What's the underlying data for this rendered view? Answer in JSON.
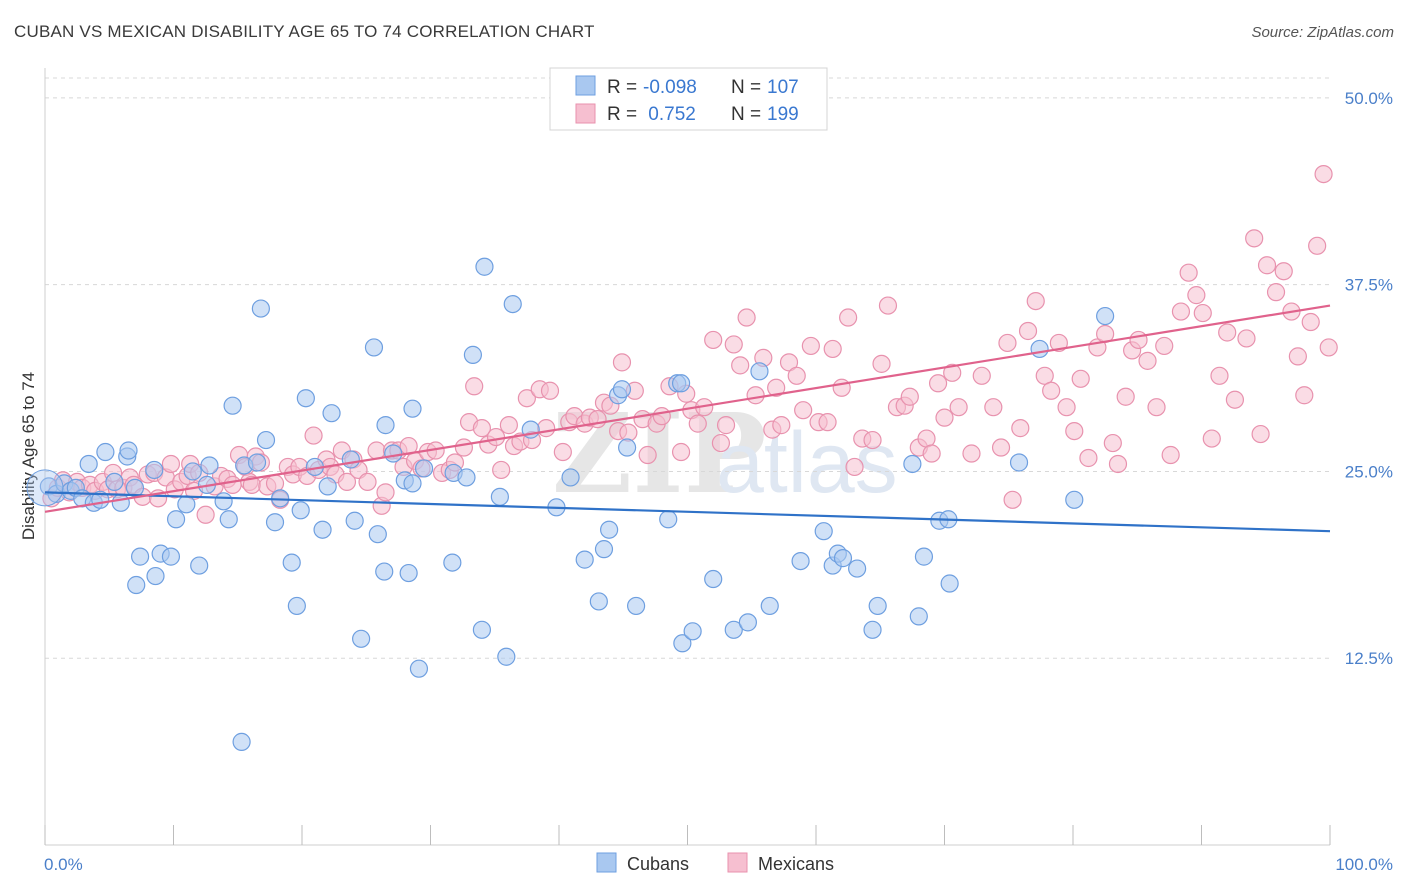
{
  "header": {
    "title": "CUBAN VS MEXICAN DISABILITY AGE 65 TO 74 CORRELATION CHART",
    "source": "Source: ZipAtlas.com"
  },
  "watermark": {
    "zip": "ZIP",
    "atlas": "atlas"
  },
  "legend": {
    "rows": [
      {
        "r_label": "R = ",
        "r_value": "-0.098",
        "n_label": "N = ",
        "n_value": "107"
      },
      {
        "r_label": "R = ",
        "r_value": " 0.752",
        "n_label": "N = ",
        "n_value": "199"
      }
    ]
  },
  "colors": {
    "cubans_fill": "#a9c8f0",
    "cubans_stroke": "#6e9fe0",
    "cubans_line": "#2f72c8",
    "mexicans_fill": "#f6bfd0",
    "mexicans_stroke": "#e892ae",
    "mexicans_line": "#e0628c",
    "tick_label": "#4a7fc9",
    "grid": "#d8d8d8"
  },
  "chart_data": {
    "type": "scatter",
    "title": "CUBAN VS MEXICAN DISABILITY AGE 65 TO 74 CORRELATION CHART",
    "ylabel": "Disability Age 65 to 74",
    "xlabel": "",
    "xlim": [
      0,
      100
    ],
    "ylim": [
      0,
      52
    ],
    "x_tick_labels": [
      "0.0%",
      "100.0%"
    ],
    "y_ticks": [
      12.5,
      25.0,
      37.5,
      50.0
    ],
    "y_tick_labels": [
      "12.5%",
      "25.0%",
      "37.5%",
      "50.0%"
    ],
    "grid": true,
    "legend_position": "bottom",
    "series": [
      {
        "name": "Cubans",
        "r": -0.098,
        "n": 107,
        "trend": {
          "x": [
            0,
            100
          ],
          "y": [
            23.6,
            21.0
          ]
        },
        "points": [
          [
            0.3,
            24.0
          ],
          [
            0.9,
            23.5
          ],
          [
            1.5,
            24.2
          ],
          [
            2.0,
            23.7
          ],
          [
            2.4,
            23.9
          ],
          [
            2.9,
            23.2
          ],
          [
            3.4,
            25.5
          ],
          [
            3.8,
            22.9
          ],
          [
            4.3,
            23.1
          ],
          [
            4.7,
            26.3
          ],
          [
            5.4,
            24.3
          ],
          [
            5.9,
            22.9
          ],
          [
            6.4,
            26.0
          ],
          [
            6.5,
            26.4
          ],
          [
            7.0,
            23.9
          ],
          [
            7.1,
            17.4
          ],
          [
            7.4,
            19.3
          ],
          [
            8.5,
            25.1
          ],
          [
            8.6,
            18.0
          ],
          [
            9.0,
            19.5
          ],
          [
            9.8,
            19.3
          ],
          [
            10.2,
            21.8
          ],
          [
            11.0,
            22.8
          ],
          [
            11.5,
            25.0
          ],
          [
            12.0,
            18.7
          ],
          [
            12.6,
            24.1
          ],
          [
            12.8,
            25.4
          ],
          [
            13.9,
            23.0
          ],
          [
            14.3,
            21.8
          ],
          [
            14.6,
            29.4
          ],
          [
            15.3,
            6.9
          ],
          [
            15.5,
            25.4
          ],
          [
            16.5,
            25.6
          ],
          [
            16.8,
            35.9
          ],
          [
            17.2,
            27.1
          ],
          [
            17.9,
            21.6
          ],
          [
            18.3,
            23.2
          ],
          [
            19.2,
            18.9
          ],
          [
            19.6,
            16.0
          ],
          [
            19.9,
            22.4
          ],
          [
            20.3,
            29.9
          ],
          [
            21.0,
            25.3
          ],
          [
            21.6,
            21.1
          ],
          [
            22.0,
            24.0
          ],
          [
            22.3,
            28.9
          ],
          [
            23.8,
            25.8
          ],
          [
            24.1,
            21.7
          ],
          [
            24.6,
            13.8
          ],
          [
            25.6,
            33.3
          ],
          [
            25.9,
            20.8
          ],
          [
            26.4,
            18.3
          ],
          [
            26.5,
            28.1
          ],
          [
            27.1,
            26.2
          ],
          [
            28.0,
            24.4
          ],
          [
            28.3,
            18.2
          ],
          [
            28.6,
            24.2
          ],
          [
            28.6,
            29.2
          ],
          [
            29.1,
            11.8
          ],
          [
            29.5,
            25.2
          ],
          [
            31.7,
            18.9
          ],
          [
            31.8,
            24.9
          ],
          [
            32.8,
            24.6
          ],
          [
            33.3,
            32.8
          ],
          [
            34.0,
            14.4
          ],
          [
            34.2,
            38.7
          ],
          [
            35.4,
            23.3
          ],
          [
            35.9,
            12.6
          ],
          [
            36.4,
            36.2
          ],
          [
            37.8,
            27.8
          ],
          [
            39.8,
            22.6
          ],
          [
            40.9,
            24.6
          ],
          [
            42.0,
            19.1
          ],
          [
            43.1,
            16.3
          ],
          [
            43.5,
            19.8
          ],
          [
            43.9,
            21.1
          ],
          [
            44.6,
            30.1
          ],
          [
            44.9,
            30.5
          ],
          [
            45.3,
            26.6
          ],
          [
            46.0,
            16.0
          ],
          [
            48.5,
            21.8
          ],
          [
            49.2,
            30.9
          ],
          [
            49.5,
            30.9
          ],
          [
            49.6,
            13.5
          ],
          [
            50.4,
            14.3
          ],
          [
            52.0,
            17.8
          ],
          [
            53.6,
            14.4
          ],
          [
            54.7,
            14.9
          ],
          [
            55.6,
            31.7
          ],
          [
            56.4,
            16.0
          ],
          [
            58.8,
            19.0
          ],
          [
            60.6,
            21.0
          ],
          [
            61.3,
            18.7
          ],
          [
            61.7,
            19.5
          ],
          [
            62.1,
            19.2
          ],
          [
            63.2,
            18.5
          ],
          [
            64.4,
            14.4
          ],
          [
            64.8,
            16.0
          ],
          [
            67.5,
            25.5
          ],
          [
            68.0,
            15.3
          ],
          [
            68.4,
            19.3
          ],
          [
            69.6,
            21.7
          ],
          [
            70.3,
            21.8
          ],
          [
            70.4,
            17.5
          ],
          [
            75.8,
            25.6
          ],
          [
            77.4,
            33.2
          ],
          [
            80.1,
            23.1
          ],
          [
            82.5,
            35.4
          ]
        ]
      },
      {
        "name": "Mexicans",
        "r": 0.752,
        "n": 199,
        "trend": {
          "x": [
            0,
            100
          ],
          "y": [
            22.3,
            36.1
          ]
        },
        "points": [
          [
            0.5,
            23.2
          ],
          [
            1.0,
            23.9
          ],
          [
            1.4,
            24.4
          ],
          [
            1.9,
            23.6
          ],
          [
            2.5,
            24.3
          ],
          [
            2.9,
            23.9
          ],
          [
            3.5,
            24.1
          ],
          [
            3.9,
            23.7
          ],
          [
            4.5,
            24.3
          ],
          [
            4.9,
            23.8
          ],
          [
            5.3,
            24.9
          ],
          [
            5.6,
            23.8
          ],
          [
            6.1,
            23.9
          ],
          [
            6.6,
            24.6
          ],
          [
            6.9,
            24.1
          ],
          [
            7.6,
            23.3
          ],
          [
            8.0,
            24.8
          ],
          [
            8.5,
            24.9
          ],
          [
            8.8,
            23.2
          ],
          [
            9.4,
            24.6
          ],
          [
            9.8,
            25.5
          ],
          [
            10.1,
            23.8
          ],
          [
            10.6,
            24.3
          ],
          [
            11.1,
            24.7
          ],
          [
            11.3,
            25.5
          ],
          [
            11.6,
            23.7
          ],
          [
            12.0,
            24.9
          ],
          [
            12.5,
            22.1
          ],
          [
            13.2,
            24.0
          ],
          [
            13.7,
            24.7
          ],
          [
            14.2,
            24.5
          ],
          [
            14.6,
            24.1
          ],
          [
            15.1,
            26.1
          ],
          [
            15.6,
            25.3
          ],
          [
            15.9,
            24.3
          ],
          [
            16.1,
            24.1
          ],
          [
            16.4,
            26.0
          ],
          [
            16.8,
            25.6
          ],
          [
            17.3,
            24.0
          ],
          [
            17.9,
            24.2
          ],
          [
            18.3,
            23.1
          ],
          [
            18.9,
            25.3
          ],
          [
            19.3,
            24.8
          ],
          [
            19.8,
            25.3
          ],
          [
            20.4,
            24.7
          ],
          [
            20.9,
            27.4
          ],
          [
            21.3,
            25.1
          ],
          [
            21.9,
            25.8
          ],
          [
            22.2,
            25.3
          ],
          [
            22.6,
            24.8
          ],
          [
            23.1,
            26.4
          ],
          [
            23.5,
            24.3
          ],
          [
            24.0,
            25.8
          ],
          [
            24.4,
            25.1
          ],
          [
            25.1,
            24.3
          ],
          [
            25.8,
            26.4
          ],
          [
            26.2,
            22.7
          ],
          [
            26.5,
            23.6
          ],
          [
            27.0,
            26.4
          ],
          [
            27.5,
            26.4
          ],
          [
            27.9,
            25.3
          ],
          [
            28.3,
            26.7
          ],
          [
            28.8,
            25.7
          ],
          [
            29.3,
            25.2
          ],
          [
            29.8,
            26.3
          ],
          [
            30.4,
            26.4
          ],
          [
            30.9,
            24.9
          ],
          [
            31.5,
            25.1
          ],
          [
            31.9,
            25.6
          ],
          [
            32.6,
            26.6
          ],
          [
            33.0,
            28.3
          ],
          [
            33.4,
            30.7
          ],
          [
            34.0,
            27.9
          ],
          [
            34.5,
            26.8
          ],
          [
            35.1,
            27.3
          ],
          [
            35.5,
            25.1
          ],
          [
            36.1,
            28.1
          ],
          [
            36.5,
            26.7
          ],
          [
            37.0,
            27.0
          ],
          [
            37.5,
            29.9
          ],
          [
            37.9,
            27.1
          ],
          [
            38.5,
            30.5
          ],
          [
            39.0,
            27.9
          ],
          [
            39.3,
            30.4
          ],
          [
            40.3,
            26.3
          ],
          [
            40.8,
            28.3
          ],
          [
            41.2,
            28.7
          ],
          [
            42.0,
            28.2
          ],
          [
            42.4,
            28.6
          ],
          [
            43.0,
            28.5
          ],
          [
            43.5,
            29.6
          ],
          [
            44.0,
            29.4
          ],
          [
            44.6,
            27.7
          ],
          [
            44.9,
            32.3
          ],
          [
            45.4,
            27.6
          ],
          [
            45.9,
            30.4
          ],
          [
            46.5,
            28.5
          ],
          [
            46.9,
            26.1
          ],
          [
            47.6,
            28.2
          ],
          [
            48.0,
            28.7
          ],
          [
            48.6,
            30.7
          ],
          [
            49.5,
            26.3
          ],
          [
            49.9,
            30.2
          ],
          [
            50.3,
            29.1
          ],
          [
            50.8,
            28.2
          ],
          [
            51.3,
            29.3
          ],
          [
            52.0,
            33.8
          ],
          [
            52.6,
            26.9
          ],
          [
            53.0,
            28.1
          ],
          [
            53.6,
            33.5
          ],
          [
            54.1,
            32.1
          ],
          [
            54.6,
            35.3
          ],
          [
            55.3,
            30.1
          ],
          [
            55.9,
            32.6
          ],
          [
            56.6,
            27.8
          ],
          [
            56.9,
            30.6
          ],
          [
            57.3,
            28.1
          ],
          [
            57.9,
            32.3
          ],
          [
            58.5,
            31.4
          ],
          [
            59.0,
            29.1
          ],
          [
            59.6,
            33.4
          ],
          [
            60.2,
            28.3
          ],
          [
            60.9,
            28.3
          ],
          [
            61.3,
            33.2
          ],
          [
            62.0,
            30.6
          ],
          [
            62.5,
            35.3
          ],
          [
            63.0,
            25.3
          ],
          [
            63.6,
            27.2
          ],
          [
            64.4,
            27.1
          ],
          [
            65.1,
            32.2
          ],
          [
            65.6,
            36.1
          ],
          [
            66.3,
            29.3
          ],
          [
            66.9,
            29.4
          ],
          [
            67.3,
            30.0
          ],
          [
            68.0,
            26.6
          ],
          [
            68.6,
            27.2
          ],
          [
            69.0,
            26.2
          ],
          [
            69.5,
            30.9
          ],
          [
            70.0,
            28.6
          ],
          [
            70.6,
            31.6
          ],
          [
            71.1,
            29.3
          ],
          [
            72.1,
            26.2
          ],
          [
            72.9,
            31.4
          ],
          [
            73.8,
            29.3
          ],
          [
            74.4,
            26.6
          ],
          [
            74.9,
            33.6
          ],
          [
            75.3,
            23.1
          ],
          [
            75.9,
            27.9
          ],
          [
            76.5,
            34.4
          ],
          [
            77.1,
            36.4
          ],
          [
            77.8,
            31.4
          ],
          [
            78.3,
            30.4
          ],
          [
            78.9,
            33.6
          ],
          [
            79.5,
            29.3
          ],
          [
            80.1,
            27.7
          ],
          [
            80.6,
            31.2
          ],
          [
            81.2,
            25.9
          ],
          [
            81.9,
            33.3
          ],
          [
            82.5,
            34.2
          ],
          [
            83.1,
            26.9
          ],
          [
            83.5,
            25.5
          ],
          [
            84.1,
            30.0
          ],
          [
            84.6,
            33.1
          ],
          [
            85.1,
            33.8
          ],
          [
            85.8,
            32.4
          ],
          [
            86.5,
            29.3
          ],
          [
            87.1,
            33.4
          ],
          [
            87.6,
            26.1
          ],
          [
            88.4,
            35.7
          ],
          [
            89.0,
            38.3
          ],
          [
            89.6,
            36.8
          ],
          [
            90.1,
            35.6
          ],
          [
            90.8,
            27.2
          ],
          [
            91.4,
            31.4
          ],
          [
            92.0,
            34.3
          ],
          [
            92.6,
            29.8
          ],
          [
            93.5,
            33.9
          ],
          [
            94.1,
            40.6
          ],
          [
            94.6,
            27.5
          ],
          [
            95.1,
            38.8
          ],
          [
            95.8,
            37.0
          ],
          [
            96.4,
            38.4
          ],
          [
            97.0,
            35.7
          ],
          [
            97.5,
            32.7
          ],
          [
            98.0,
            30.1
          ],
          [
            98.5,
            35.0
          ],
          [
            99.0,
            40.1
          ],
          [
            99.5,
            44.9
          ],
          [
            99.9,
            33.3
          ]
        ]
      }
    ]
  },
  "bottom_legend": [
    {
      "name": "Cubans"
    },
    {
      "name": "Mexicans"
    }
  ]
}
